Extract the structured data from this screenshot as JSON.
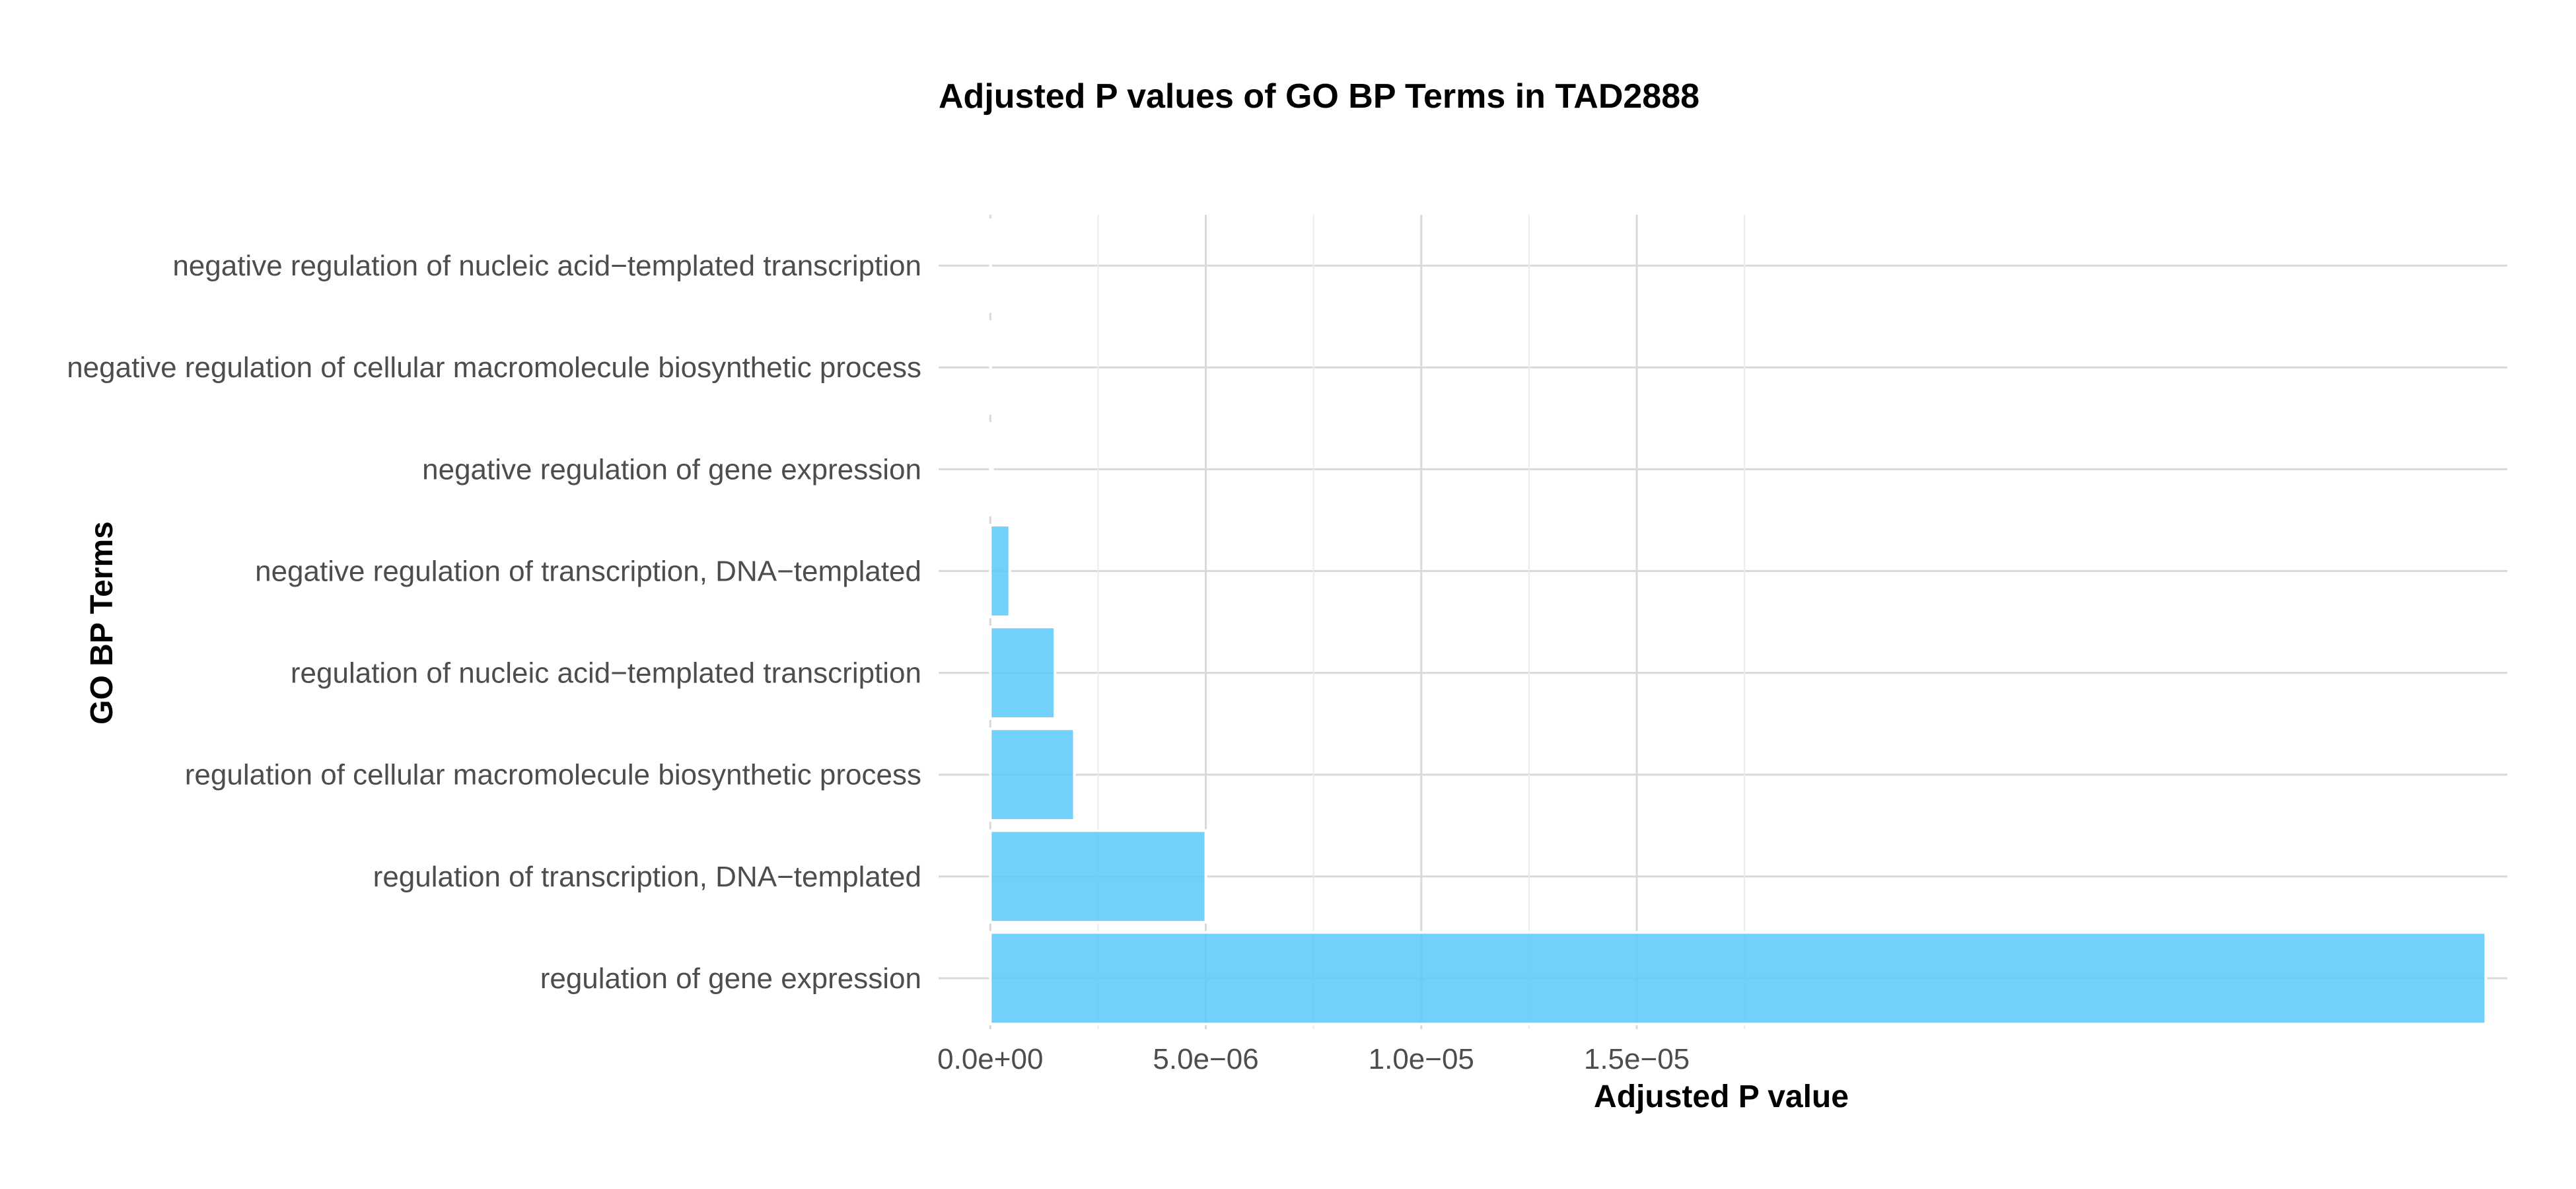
{
  "chart_data": {
    "type": "bar",
    "orientation": "horizontal",
    "title": "Adjusted P values of GO BP Terms in TAD2888",
    "xlabel": "Adjusted P value",
    "ylabel": "GO BP Terms",
    "categories": [
      "negative regulation of nucleic acid−templated transcription",
      "negative regulation of cellular macromolecule biosynthetic process",
      "negative regulation of gene expression",
      "negative regulation of transcription, DNA−templated",
      "regulation of nucleic acid−templated transcription",
      "regulation of cellular macromolecule biosynthetic process",
      "regulation of transcription, DNA−templated",
      "regulation of gene expression"
    ],
    "values": [
      1e-09,
      2e-09,
      5e-08,
      4.5e-07,
      1.5e-06,
      1.95e-06,
      5e-06,
      3.47e-05
    ],
    "xlim": [
      -1.2e-06,
      3.52e-05
    ],
    "xticks": [
      0,
      5e-06,
      1e-05,
      1.5e-05
    ],
    "xtick_labels": [
      "0.0e+00",
      "5.0e−06",
      "1.0e−05",
      "1.5e−05"
    ],
    "grid": true,
    "legend": "none",
    "bar_color": "#5BC8FA",
    "bar_outline_color": "#ffffff"
  }
}
